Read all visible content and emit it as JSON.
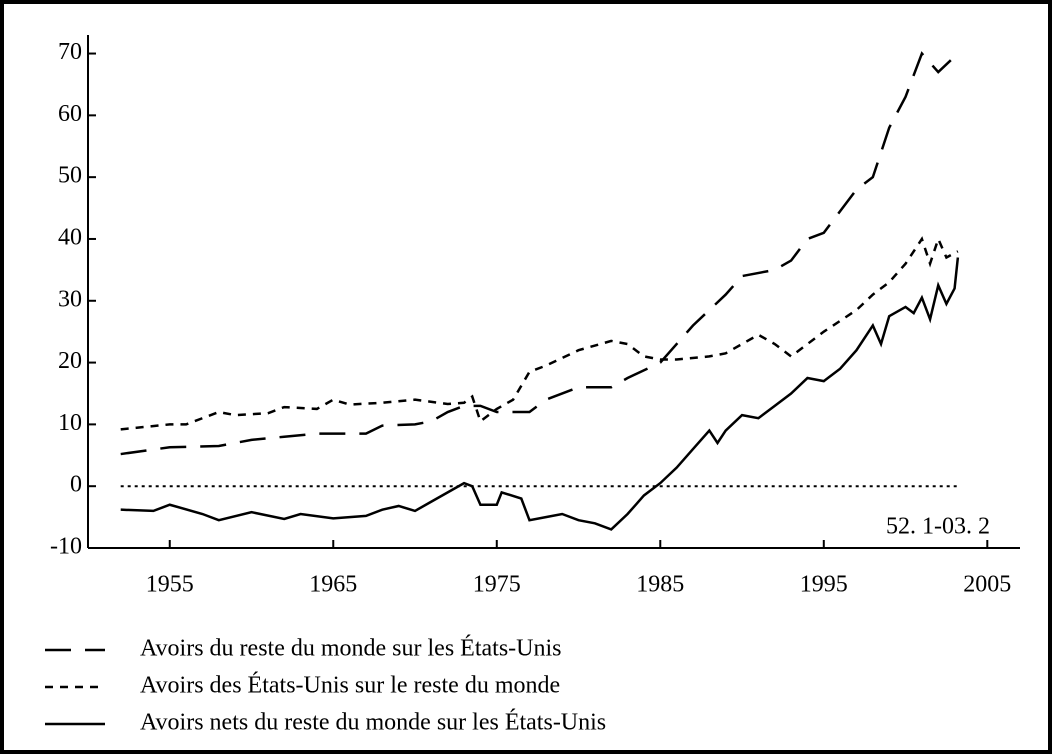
{
  "chart_data": {
    "type": "line",
    "annotation": "52. 1-03. 2",
    "xlim": [
      1950,
      2007
    ],
    "xticks": [
      1955,
      1965,
      1975,
      1985,
      1995,
      2005
    ],
    "ylim": [
      -10,
      73
    ],
    "yticks": [
      -10,
      0,
      10,
      20,
      30,
      40,
      50,
      60,
      70
    ],
    "zero_line": 0,
    "series": [
      {
        "name": "Avoirs du reste du monde sur les États-Unis",
        "color": "#000000",
        "dash": "long",
        "x": [
          1952,
          1955,
          1958,
          1960,
          1962,
          1964,
          1965,
          1967,
          1968,
          1970,
          1971,
          1972,
          1973,
          1974,
          1975,
          1977,
          1978,
          1980,
          1982,
          1983,
          1985,
          1987,
          1989,
          1990,
          1992,
          1993,
          1994,
          1995,
          1997,
          1998,
          1999,
          2000,
          2001,
          2002,
          2003.2
        ],
        "values": [
          5.2,
          6.3,
          6.5,
          7.5,
          8,
          8.5,
          8.5,
          8.5,
          9.8,
          10,
          10.5,
          12,
          13,
          13,
          12,
          12,
          14,
          16,
          16,
          17.5,
          20,
          26,
          31,
          34,
          35,
          36.5,
          40,
          41,
          48,
          50,
          58,
          63,
          70,
          67,
          70
        ]
      },
      {
        "name": "Avoirs des États-Unis sur le reste du monde",
        "color": "#000000",
        "dash": "short",
        "x": [
          1952,
          1955,
          1956,
          1958,
          1959,
          1961,
          1962,
          1964,
          1965,
          1966,
          1968,
          1970,
          1972,
          1973,
          1973.5,
          1974,
          1975,
          1976,
          1977,
          1978,
          1980,
          1982,
          1983,
          1984,
          1985,
          1986,
          1988,
          1989,
          1990,
          1991,
          1992,
          1993,
          1994,
          1995,
          1997,
          1998,
          1999,
          2000,
          2001,
          2001.5,
          2002,
          2002.5,
          2003.2
        ],
        "values": [
          9.2,
          10,
          10,
          12,
          11.5,
          11.8,
          12.8,
          12.5,
          14,
          13.2,
          13.5,
          14,
          13.3,
          13.5,
          14.5,
          10.5,
          12.5,
          14,
          18.5,
          19.5,
          22,
          23.5,
          23,
          21,
          20.5,
          20.5,
          21,
          21.5,
          23,
          24.5,
          23,
          21,
          23,
          25,
          28.5,
          31,
          33,
          36,
          40,
          36,
          40,
          37,
          38
        ]
      },
      {
        "name": "Avoirs nets du reste du monde sur les États-Unis",
        "color": "#000000",
        "dash": "solid",
        "x": [
          1952,
          1954,
          1955,
          1957,
          1958,
          1960,
          1962,
          1963,
          1965,
          1967,
          1968,
          1969,
          1970,
          1971,
          1972,
          1973,
          1973.5,
          1974,
          1975,
          1975.3,
          1976.5,
          1977,
          1978,
          1979,
          1980,
          1981,
          1982,
          1983,
          1984,
          1985,
          1986,
          1987,
          1988,
          1988.5,
          1989,
          1990,
          1991,
          1992,
          1993,
          1994,
          1995,
          1996,
          1997,
          1998,
          1998.5,
          1999,
          2000,
          2000.5,
          2001,
          2001.5,
          2002,
          2002.5,
          2003,
          2003.2
        ],
        "values": [
          -3.8,
          -4,
          -3,
          -4.5,
          -5.5,
          -4.2,
          -5.3,
          -4.5,
          -5.2,
          -4.8,
          -3.8,
          -3.2,
          -4,
          -2.5,
          -1,
          0.5,
          0,
          -3,
          -3,
          -1,
          -2,
          -5.5,
          -5,
          -4.5,
          -5.5,
          -6,
          -7,
          -4.5,
          -1.5,
          0.5,
          3,
          6,
          9,
          7,
          9,
          11.5,
          11,
          13,
          15,
          17.5,
          17,
          19,
          22,
          26,
          23,
          27.5,
          29,
          28,
          30.5,
          27,
          32.5,
          29.5,
          32,
          37
        ]
      }
    ]
  }
}
